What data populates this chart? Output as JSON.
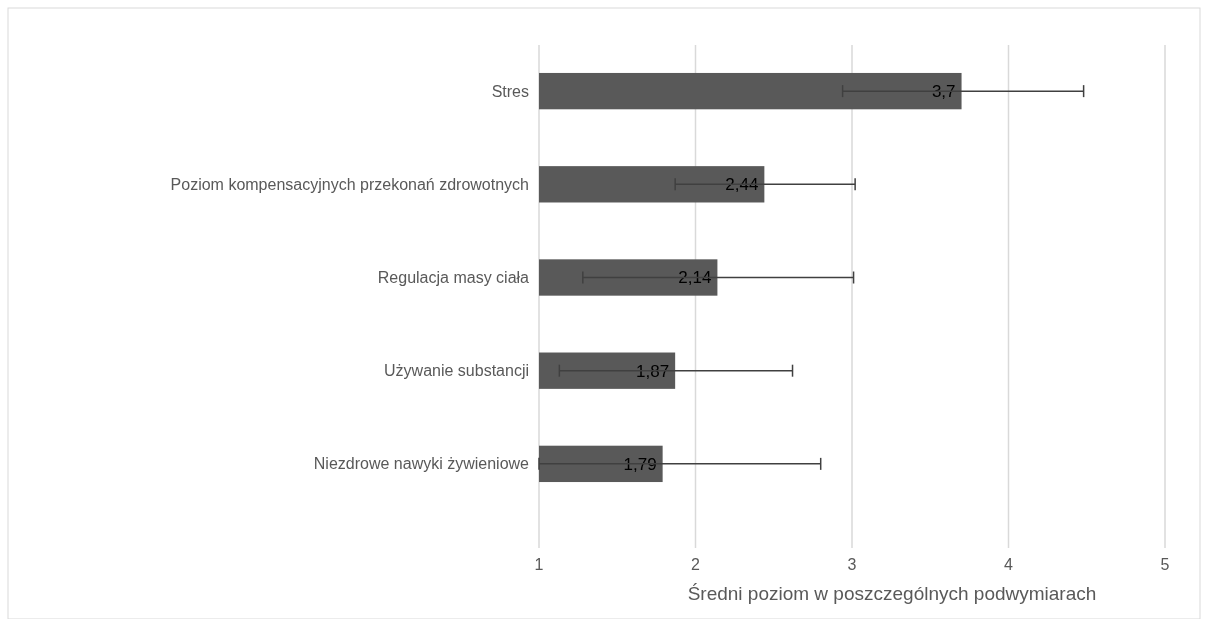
{
  "chart_data": {
    "type": "bar",
    "orientation": "horizontal",
    "xlabel": "Średni poziom w poszczególnych podwymiarach",
    "categories": [
      "Stres",
      "Poziom kompensacyjnych przekonań zdrowotnych",
      "Regulacja masy ciała",
      "Używanie substancji",
      "Niezdrowe nawyki żywieniowe"
    ],
    "values": [
      3.7,
      2.44,
      2.14,
      1.87,
      1.79
    ],
    "errors": [
      [
        2.94,
        4.48
      ],
      [
        1.87,
        3.02
      ],
      [
        1.28,
        3.01
      ],
      [
        1.13,
        2.62
      ],
      [
        1,
        2.8
      ]
    ],
    "value_labels": [
      "3,7",
      "2,44",
      "2,14",
      "1,87",
      "1,79"
    ],
    "color": "#595959",
    "xlim": [
      1,
      5
    ],
    "xticks": [
      1,
      2,
      3,
      4,
      5
    ],
    "grid": "x"
  }
}
